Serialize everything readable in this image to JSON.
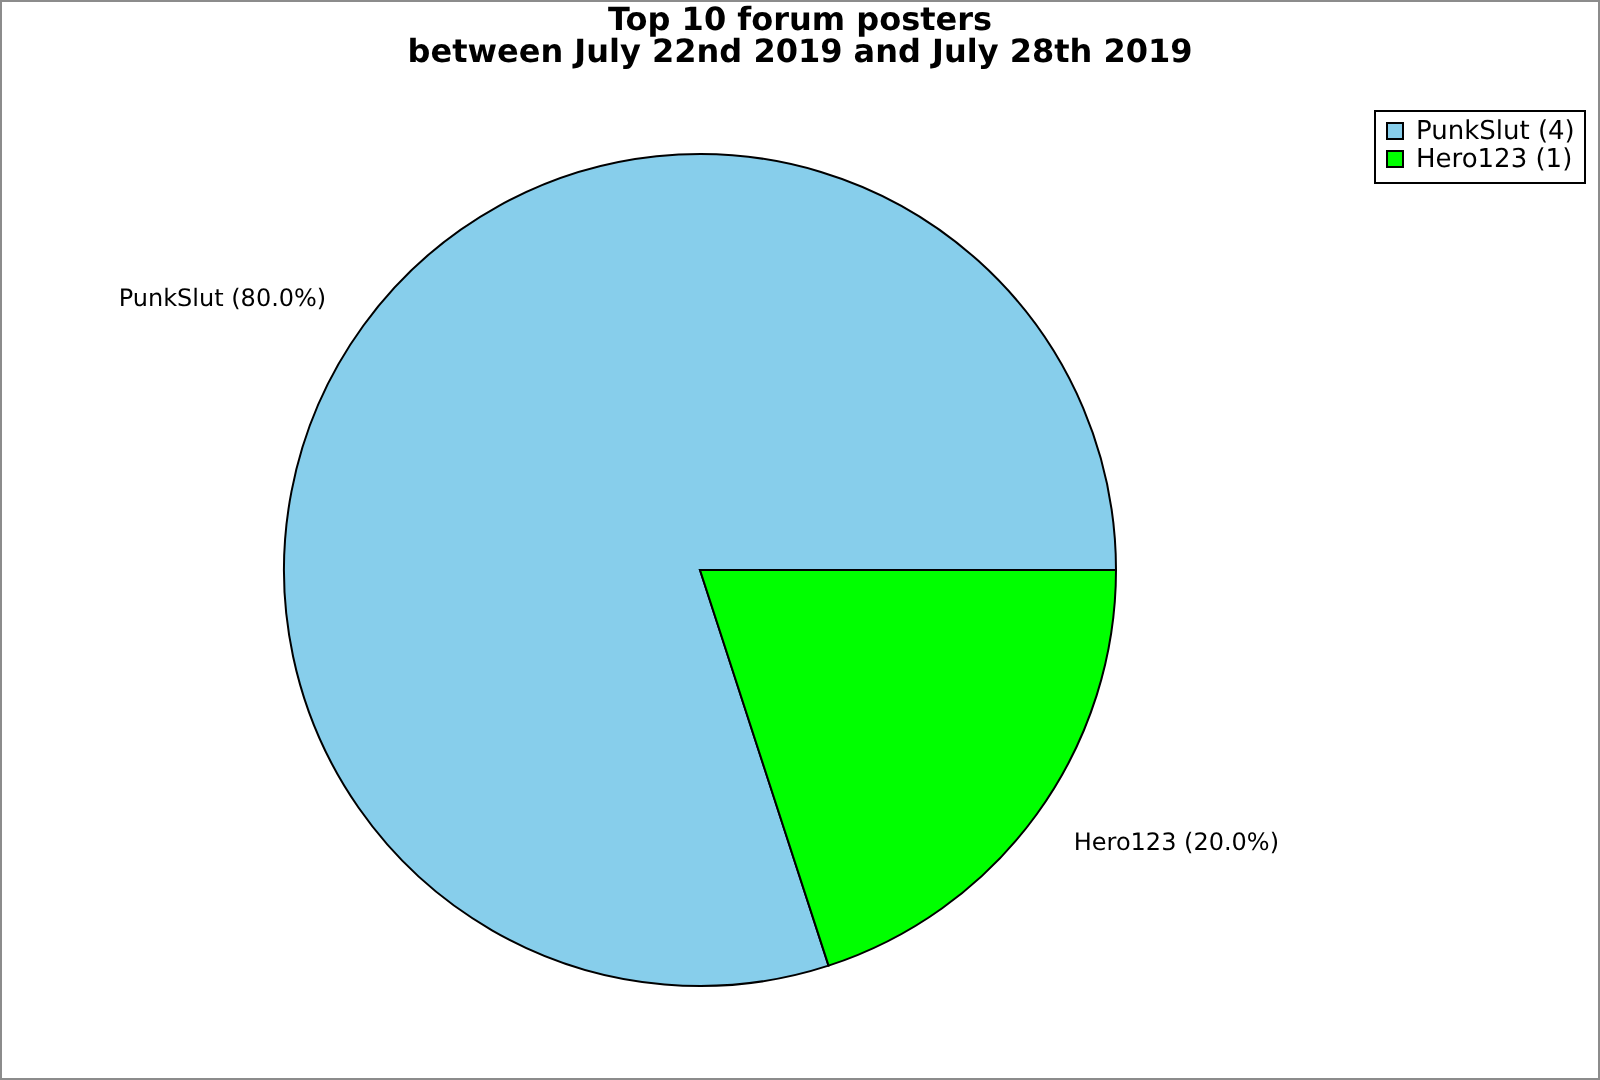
{
  "chart_data": {
    "type": "pie",
    "title": "Top 10 forum posters",
    "subtitle": "between July 22nd 2019 and July 28th 2019",
    "categories": [
      "PunkSlut (4)",
      "Hero123 (1)"
    ],
    "values": [
      80,
      20
    ],
    "colors": [
      "#87ceeb",
      "#00ff00"
    ],
    "value_labels": [
      "PunkSlut (80.0%)",
      "Hero123 (20.0%)"
    ],
    "legend": "top right"
  }
}
